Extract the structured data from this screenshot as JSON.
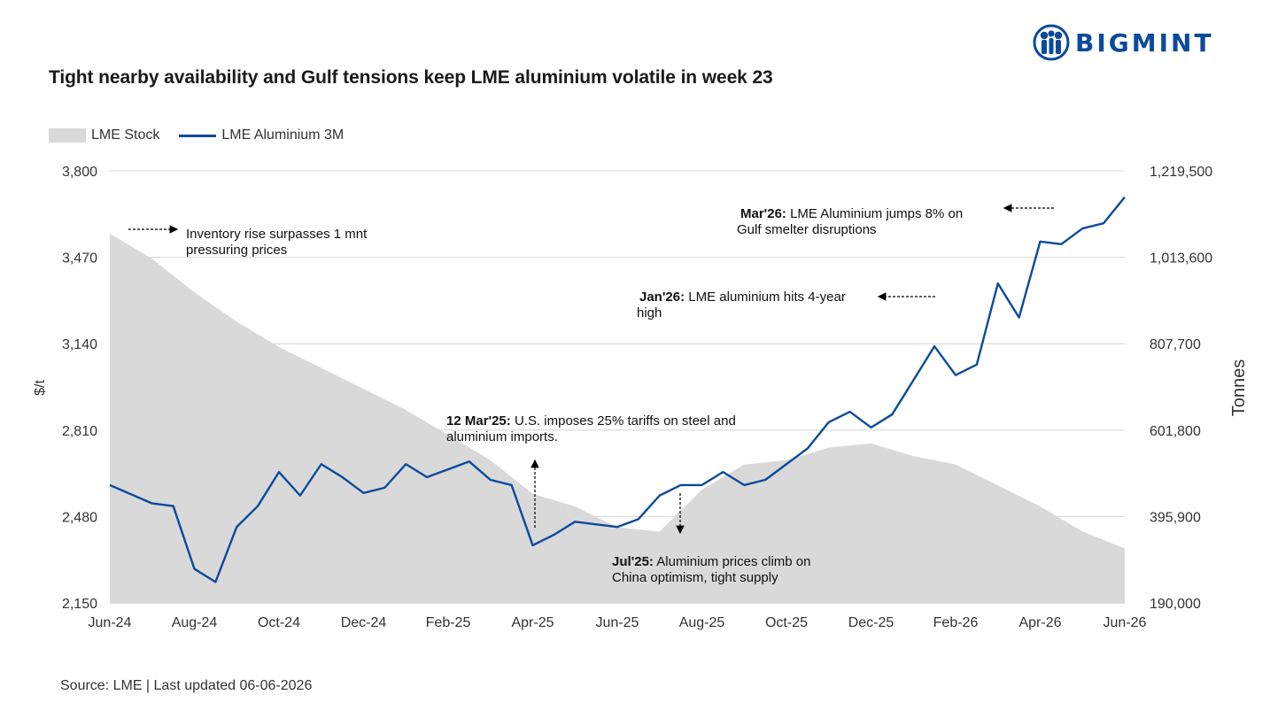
{
  "title": "Tight nearby availability and Gulf tensions keep LME aluminium volatile in week 23",
  "brand": {
    "name": "BIGMINT",
    "color": "#0b4a9c",
    "icon": "people-logo-icon"
  },
  "source": "Source: LME | Last updated 06-06-2026",
  "colors": {
    "line": "#0b4a9c",
    "area": "#d9d9d9",
    "grid": "#d6d6d6",
    "annotation": "#000000"
  },
  "chart_data": {
    "type": "line",
    "title": "Tight nearby availability and Gulf tensions keep LME aluminium volatile in week 23",
    "ylabel": "$/t",
    "y2label": "Tonnes",
    "ylim": [
      2150,
      3800
    ],
    "y2lim": [
      190000,
      1219500
    ],
    "yticks": [
      "3,800",
      "3,470",
      "3,140",
      "2,810",
      "2,480",
      "2,150"
    ],
    "y2ticks": [
      "1,219,500",
      "1,013,600",
      "807,700",
      "601,800",
      "395,900",
      "190,000"
    ],
    "x_ticks": [
      "Jun-24",
      "Aug-24",
      "Oct-24",
      "Dec-24",
      "Feb-25",
      "Apr-25",
      "Jun-25",
      "Aug-25",
      "Oct-25",
      "Dec-25",
      "Feb-26",
      "Apr-26",
      "Jun-26"
    ],
    "grid": true,
    "legend_position": "top-left",
    "legend": [
      "LME Stock",
      "LME Aluminium 3M"
    ],
    "series": [
      {
        "name": "LME Aluminium 3M",
        "axis": "left",
        "style": "line",
        "x": [
          "Jun-24",
          "Jul-24",
          "Jul-24",
          "Aug-24",
          "Aug-24",
          "Sep-24",
          "Sep-24",
          "Oct-24",
          "Oct-24",
          "Nov-24",
          "Nov-24",
          "Dec-24",
          "Dec-24",
          "Jan-25",
          "Jan-25",
          "Feb-25",
          "Feb-25",
          "Mar-25",
          "Mar-25",
          "Apr-25",
          "Apr-25",
          "May-25",
          "May-25",
          "Jun-25",
          "Jun-25",
          "Jul-25",
          "Jul-25",
          "Aug-25",
          "Aug-25",
          "Sep-25",
          "Sep-25",
          "Oct-25",
          "Oct-25",
          "Nov-25",
          "Nov-25",
          "Dec-25",
          "Dec-25",
          "Jan-26",
          "Jan-26",
          "Feb-26",
          "Feb-26",
          "Mar-26",
          "Mar-26",
          "Apr-26",
          "Apr-26",
          "May-26",
          "May-26",
          "Jun-26"
        ],
        "values": [
          2600,
          2530,
          2520,
          2280,
          2230,
          2440,
          2520,
          2650,
          2560,
          2680,
          2630,
          2570,
          2590,
          2680,
          2630,
          2660,
          2690,
          2620,
          2600,
          2370,
          2410,
          2460,
          2450,
          2440,
          2470,
          2560,
          2600,
          2600,
          2650,
          2600,
          2620,
          2680,
          2740,
          2840,
          2880,
          2820,
          2870,
          3000,
          3130,
          3020,
          3060,
          3370,
          3240,
          3530,
          3520,
          3580,
          3600,
          3700
        ]
      },
      {
        "name": "LME Stock",
        "axis": "right",
        "style": "area",
        "x": [
          "Jun-24",
          "Jul-24",
          "Aug-24",
          "Sep-24",
          "Oct-24",
          "Nov-24",
          "Dec-24",
          "Jan-25",
          "Feb-25",
          "Mar-25",
          "Apr-25",
          "May-25",
          "Jun-25",
          "Jul-25",
          "Aug-25",
          "Sep-25",
          "Oct-25",
          "Nov-25",
          "Dec-25",
          "Jan-26",
          "Feb-26",
          "Mar-26",
          "Apr-26",
          "May-26",
          "Jun-26"
        ],
        "values": [
          1070000,
          1010000,
          930000,
          860000,
          800000,
          750000,
          700000,
          650000,
          590000,
          530000,
          450000,
          420000,
          370000,
          360000,
          460000,
          520000,
          530000,
          560000,
          570000,
          540000,
          520000,
          470000,
          420000,
          360000,
          320000
        ]
      }
    ],
    "annotations": [
      {
        "bold": "",
        "text": "Inventory rise surpasses 1 mnt pressuring prices",
        "line1": "Inventory rise surpasses 1 mnt",
        "line2": "pressuring prices"
      },
      {
        "bold": "12 Mar'25:",
        "text": "U.S. imposes 25% tariffs on steel and aluminium imports.",
        "line1": " U.S. imposes 25% tariffs on steel and",
        "line2": "aluminium imports."
      },
      {
        "bold": "Jul'25:",
        "text": "Aluminium prices climb on China optimism, tight supply",
        "line1": " Aluminium prices climb on",
        "line2": "China optimism, tight supply"
      },
      {
        "bold": "Jan'26:",
        "text": "LME aluminium hits 4-year high",
        "line1": " LME aluminium hits 4-year",
        "line2": "high"
      },
      {
        "bold": "Mar'26:",
        "text": "LME Aluminium jumps 8% on Gulf smelter disruptions",
        "line1": " LME Aluminium jumps 8% on",
        "line2": "Gulf smelter disruptions"
      }
    ]
  }
}
